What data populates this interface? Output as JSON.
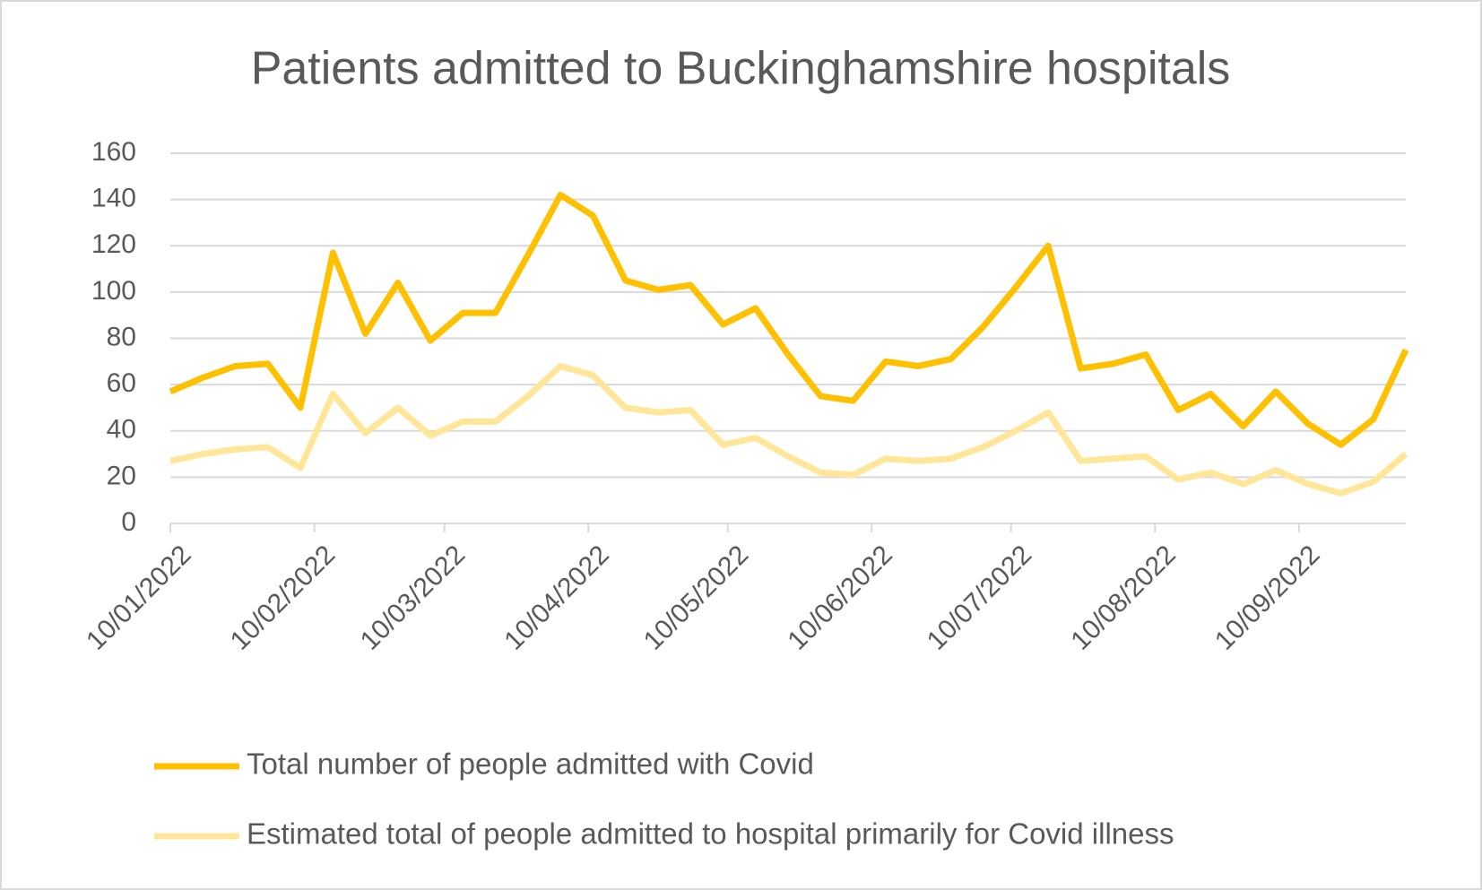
{
  "chart_data": {
    "type": "line",
    "title": "Patients admitted to Buckinghamshire hospitals",
    "x": [
      "10/01/2022",
      "17/01/2022",
      "24/01/2022",
      "31/01/2022",
      "07/02/2022",
      "14/02/2022",
      "21/02/2022",
      "28/02/2022",
      "07/03/2022",
      "14/03/2022",
      "21/03/2022",
      "28/03/2022",
      "04/04/2022",
      "11/04/2022",
      "18/04/2022",
      "25/04/2022",
      "02/05/2022",
      "09/05/2022",
      "16/05/2022",
      "23/05/2022",
      "30/05/2022",
      "06/06/2022",
      "13/06/2022",
      "20/06/2022",
      "27/06/2022",
      "04/07/2022",
      "11/07/2022",
      "18/07/2022",
      "25/07/2022",
      "01/08/2022",
      "08/08/2022",
      "15/08/2022",
      "22/08/2022",
      "29/08/2022",
      "05/09/2022",
      "12/09/2022",
      "19/09/2022",
      "26/09/2022",
      "03/10/2022"
    ],
    "series": [
      {
        "name": "Total number of people admitted with Covid",
        "color": "#FFC000",
        "values": [
          57,
          63,
          68,
          69,
          50,
          117,
          82,
          104,
          79,
          91,
          91,
          116,
          142,
          133,
          105,
          101,
          103,
          86,
          93,
          73,
          55,
          53,
          70,
          68,
          71,
          85,
          102,
          120,
          67,
          69,
          73,
          49,
          56,
          42,
          57,
          43,
          34,
          45,
          75
        ]
      },
      {
        "name": "Estimated total of people admitted to hospital primarily for Covid illness",
        "color": "#FFE699",
        "values": [
          27,
          30,
          32,
          33,
          24,
          56,
          39,
          50,
          38,
          44,
          44,
          55,
          68,
          64,
          50,
          48,
          49,
          34,
          37,
          29,
          22,
          21,
          28,
          27,
          28,
          33,
          40,
          48,
          27,
          28,
          29,
          19,
          22,
          17,
          23,
          17,
          13,
          18,
          30
        ]
      }
    ],
    "xlim": [
      "10/01/2022",
      "03/10/2022"
    ],
    "xticks": [
      "10/01/2022",
      "10/02/2022",
      "10/03/2022",
      "10/04/2022",
      "10/05/2022",
      "10/06/2022",
      "10/07/2022",
      "10/08/2022",
      "10/09/2022"
    ],
    "ylim": [
      0,
      160
    ],
    "yticks": [
      0,
      20,
      40,
      60,
      80,
      100,
      120,
      140,
      160
    ],
    "grid": true,
    "legend": "bottom"
  }
}
